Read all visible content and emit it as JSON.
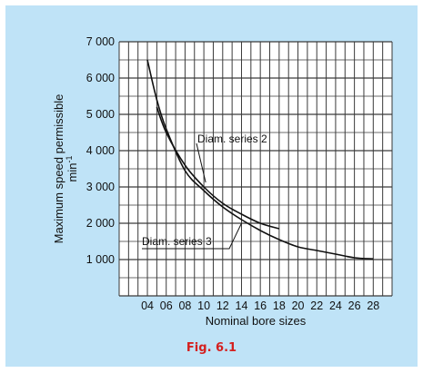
{
  "chart_data": {
    "type": "line",
    "xlabel": "Nominal bore sizes",
    "ylabel": "Maximum speed permissible",
    "ylabel_unit": "min",
    "ylabel_unit_exp": "-1",
    "x_ticks": [
      "04",
      "06",
      "08",
      "10",
      "12",
      "14",
      "16",
      "18",
      "20",
      "22",
      "24",
      "26",
      "28"
    ],
    "y_ticks": [
      "1 000",
      "2 000",
      "3 000",
      "4 000",
      "5 000",
      "6 000",
      "7 000"
    ],
    "ylim": [
      0,
      7000
    ],
    "grid": true,
    "series": [
      {
        "name": "Diam. series 2",
        "x": [
          5,
          6,
          8,
          10,
          12,
          14,
          16,
          18
        ],
        "y": [
          5200,
          4500,
          3600,
          3000,
          2550,
          2250,
          2000,
          1850
        ]
      },
      {
        "name": "Diam. series 3",
        "x": [
          4,
          5,
          6,
          8,
          10,
          12,
          14,
          16,
          18,
          20,
          22,
          24,
          26,
          28
        ],
        "y": [
          6500,
          5400,
          4600,
          3450,
          2900,
          2450,
          2100,
          1800,
          1550,
          1350,
          1250,
          1150,
          1050,
          1020
        ]
      }
    ]
  },
  "caption": "Fig. 6.1"
}
